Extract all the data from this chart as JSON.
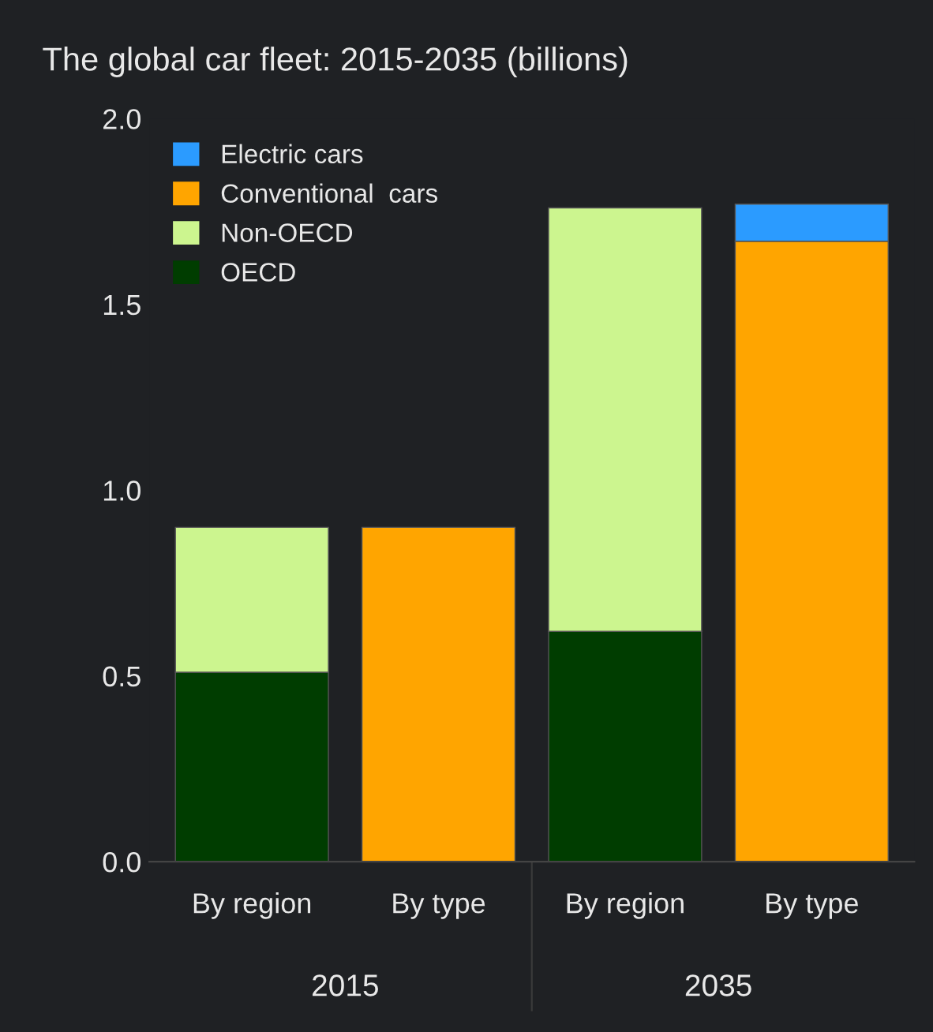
{
  "chart_data": {
    "type": "bar",
    "title": "The global car fleet: 2015-2035 (billions)",
    "categories": [
      "By region",
      "By type",
      "By region",
      "By type"
    ],
    "stacked": true,
    "series": [
      {
        "name": "OECD",
        "color": "#003d00",
        "values": [
          0.51,
          null,
          0.62,
          null
        ]
      },
      {
        "name": "Non-OECD",
        "color": "#ccf58f",
        "values": [
          0.39,
          null,
          1.14,
          null
        ]
      },
      {
        "name": "Conventional  cars",
        "color": "#ffa500",
        "values": [
          null,
          0.9,
          null,
          1.67
        ]
      },
      {
        "name": "Electric cars",
        "color": "#2b9bff",
        "values": [
          null,
          null,
          null,
          0.1
        ]
      }
    ],
    "ylim": [
      0,
      2.0
    ],
    "yticks": [
      {
        "value": 0,
        "label": "0.0"
      },
      {
        "value": 0.5,
        "label": "0.5"
      },
      {
        "value": 1.0,
        "label": "1.0"
      },
      {
        "value": 1.5,
        "label": "1.5"
      },
      {
        "value": 2.0,
        "label": "2.0"
      }
    ],
    "annotations": [
      "2015",
      "2035"
    ],
    "grid": false,
    "legend": "top left"
  }
}
